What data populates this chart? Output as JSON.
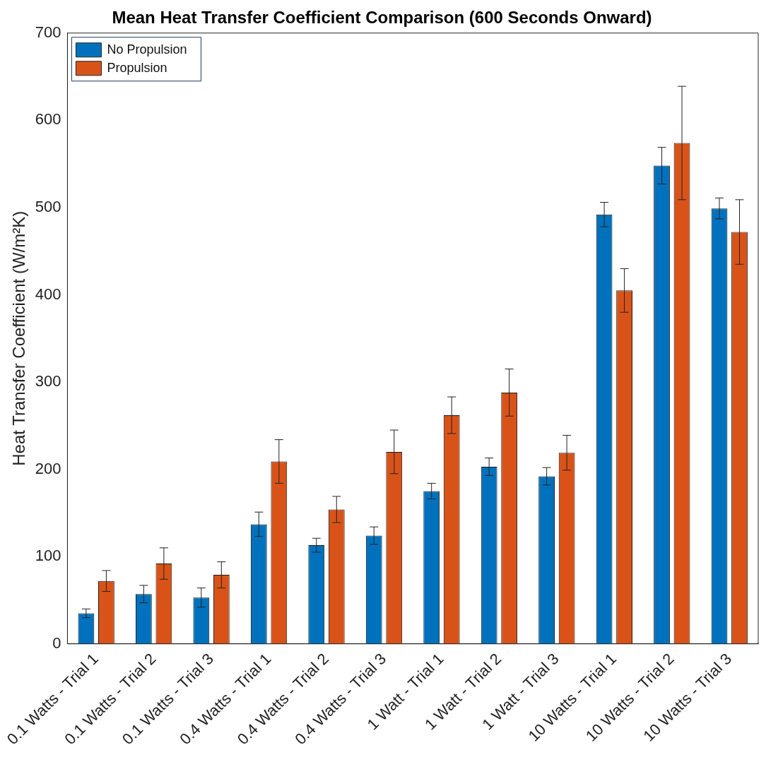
{
  "chart_data": {
    "type": "bar",
    "title": "Mean Heat Transfer Coefficient Comparison (600 Seconds Onward)",
    "ylabel": "Heat Transfer Coefficient (W/m²K)",
    "categories": [
      "0.1 Watts - Trial 1",
      "0.1 Watts - Trial 2",
      "0.1 Watts - Trial 3",
      "0.4 Watts - Trial 1",
      "0.4 Watts - Trial 2",
      "0.4 Watts - Trial 3",
      "1 Watt - Trial 1",
      "1 Watt - Trial 2",
      "1 Watt - Trial 3",
      "10 Watts - Trial 1",
      "10 Watts - Trial 2",
      "10 Watts - Trial 3"
    ],
    "series": [
      {
        "name": "No Propulsion",
        "color": "#0072bd",
        "values": [
          35,
          57,
          53,
          137,
          113,
          124,
          175,
          203,
          192,
          492,
          548,
          499
        ],
        "errors": [
          5,
          10,
          11,
          14,
          8,
          10,
          9,
          10,
          10,
          14,
          21,
          12
        ]
      },
      {
        "name": "Propulsion",
        "color": "#d95319",
        "values": [
          72,
          92,
          79,
          209,
          154,
          220,
          262,
          288,
          219,
          405,
          574,
          472
        ],
        "errors": [
          12,
          18,
          15,
          25,
          15,
          25,
          21,
          27,
          20,
          25,
          65,
          37
        ]
      }
    ],
    "ylim": [
      0,
      700
    ],
    "yticks": [
      0,
      100,
      200,
      300,
      400,
      500,
      600,
      700
    ],
    "grid": false,
    "legend": "top left"
  }
}
